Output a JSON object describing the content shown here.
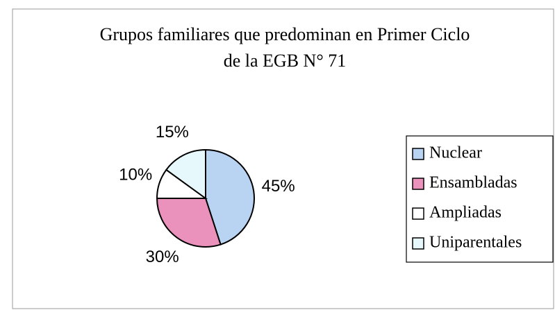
{
  "chart_data": {
    "type": "pie",
    "title": [
      "Grupos familiares que predominan en Primer Ciclo",
      "de la EGB N° 71"
    ],
    "categories": [
      "Nuclear",
      "Ensambladas",
      "Ampliadas",
      "Uniparentales"
    ],
    "values": [
      45,
      30,
      10,
      15
    ],
    "value_labels": [
      "45%",
      "30%",
      "10%",
      "15%"
    ],
    "colors": [
      "#b9d3f2",
      "#ea92bc",
      "#ffffff",
      "#e6f8fb"
    ],
    "legend": "right"
  }
}
